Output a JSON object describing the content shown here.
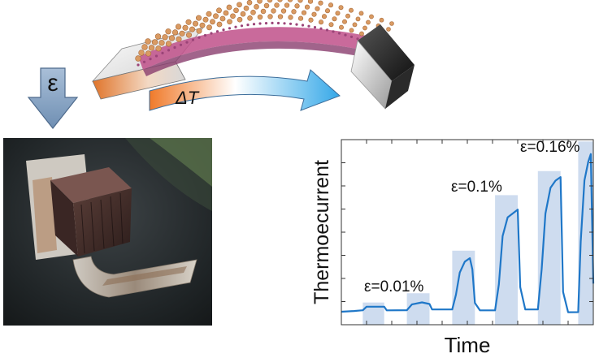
{
  "strain_symbol": "ε",
  "gradient_label": "ΔT",
  "colors": {
    "strain_arrow": "#8aa6c4",
    "gradient_hot": "#f07a2a",
    "gradient_cold": "#35a8e8",
    "trace": "#1f77c8",
    "bar_fill": "#c5d6ec",
    "atom_large": "#d99a62",
    "atom_small": "#8a3d6e"
  },
  "chart_data": {
    "type": "line",
    "xlabel": "Time",
    "ylabel": "Thermoecurrent",
    "grid": false,
    "annotations": [
      {
        "text": "ε=0.01%",
        "strain_percent": 0.01
      },
      {
        "text": "ε=0.1%",
        "strain_percent": 0.1
      },
      {
        "text": "ε=0.16%",
        "strain_percent": 0.16
      }
    ],
    "strain_pulses": [
      {
        "start": 0.085,
        "end": 0.17,
        "level": 0.12
      },
      {
        "start": 0.26,
        "end": 0.35,
        "level": 0.17
      },
      {
        "start": 0.44,
        "end": 0.53,
        "level": 0.4
      },
      {
        "start": 0.61,
        "end": 0.7,
        "level": 0.7
      },
      {
        "start": 0.78,
        "end": 0.87,
        "level": 0.83
      },
      {
        "start": 0.94,
        "end": 1.0,
        "level": 0.99
      }
    ],
    "series": [
      {
        "x": [
          0,
          0.05,
          0.085,
          0.1,
          0.17,
          0.18,
          0.26,
          0.28,
          0.32,
          0.35,
          0.36,
          0.44,
          0.455,
          0.47,
          0.49,
          0.51,
          0.52,
          0.53,
          0.55,
          0.61,
          0.625,
          0.64,
          0.66,
          0.68,
          0.7,
          0.71,
          0.73,
          0.78,
          0.795,
          0.81,
          0.83,
          0.85,
          0.87,
          0.88,
          0.9,
          0.94,
          0.95,
          0.965,
          0.98,
          0.99,
          1.0
        ],
        "y": [
          0.07,
          0.075,
          0.08,
          0.1,
          0.1,
          0.08,
          0.08,
          0.11,
          0.12,
          0.11,
          0.08,
          0.08,
          0.16,
          0.28,
          0.34,
          0.36,
          0.3,
          0.12,
          0.08,
          0.08,
          0.22,
          0.48,
          0.58,
          0.6,
          0.62,
          0.2,
          0.08,
          0.08,
          0.3,
          0.6,
          0.74,
          0.78,
          0.8,
          0.18,
          0.07,
          0.07,
          0.45,
          0.78,
          0.88,
          0.92,
          0.22
        ]
      }
    ]
  }
}
